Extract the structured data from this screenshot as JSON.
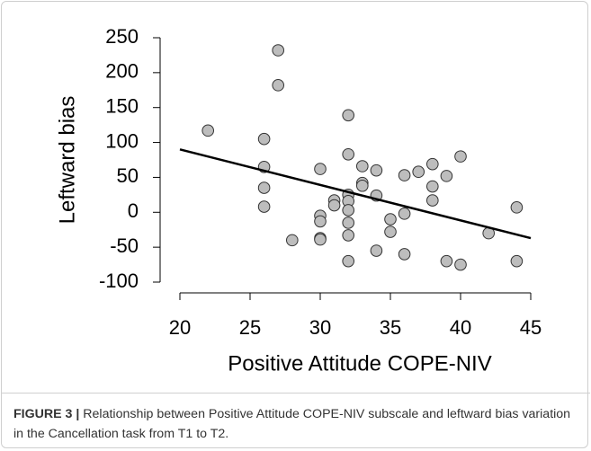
{
  "chart_data": {
    "type": "scatter",
    "x_label": "Positive Attitude COPE-NIV",
    "y_label": "Leftward bias",
    "x": [
      22,
      26,
      26,
      26,
      26,
      27,
      27,
      28,
      30,
      30,
      30,
      30,
      30,
      31,
      31,
      32,
      32,
      32,
      32,
      32,
      32,
      32,
      32,
      33,
      33,
      33,
      34,
      34,
      34,
      35,
      35,
      36,
      36,
      36,
      37,
      38,
      38,
      38,
      39,
      39,
      40,
      40,
      42,
      44,
      44
    ],
    "values": [
      117,
      105,
      65,
      35,
      8,
      232,
      182,
      -40,
      62,
      -5,
      -13,
      -37,
      -39,
      17,
      10,
      139,
      83,
      25,
      16,
      3,
      -15,
      -33,
      -70,
      66,
      42,
      38,
      60,
      24,
      -55,
      -10,
      -28,
      53,
      -2,
      -60,
      58,
      69,
      37,
      17,
      52,
      -70,
      80,
      -75,
      -30,
      7,
      -70
    ],
    "color": "#bdbdbd",
    "trend_line": {
      "x": [
        20,
        45
      ],
      "y": [
        90,
        -37
      ],
      "color": "#000000"
    },
    "xlim": [
      20,
      45
    ],
    "xticks": [
      20,
      25,
      30,
      35,
      40,
      45
    ],
    "ylim": [
      -100,
      250
    ],
    "yticks": [
      -100,
      -50,
      0,
      50,
      100,
      150,
      200,
      250
    ],
    "grid": false
  },
  "caption": {
    "label": "FIGURE 3 |",
    "text": "Relationship between Positive Attitude COPE-NIV subscale and leftward bias variation in the Cancellation task from T1 to T2."
  }
}
